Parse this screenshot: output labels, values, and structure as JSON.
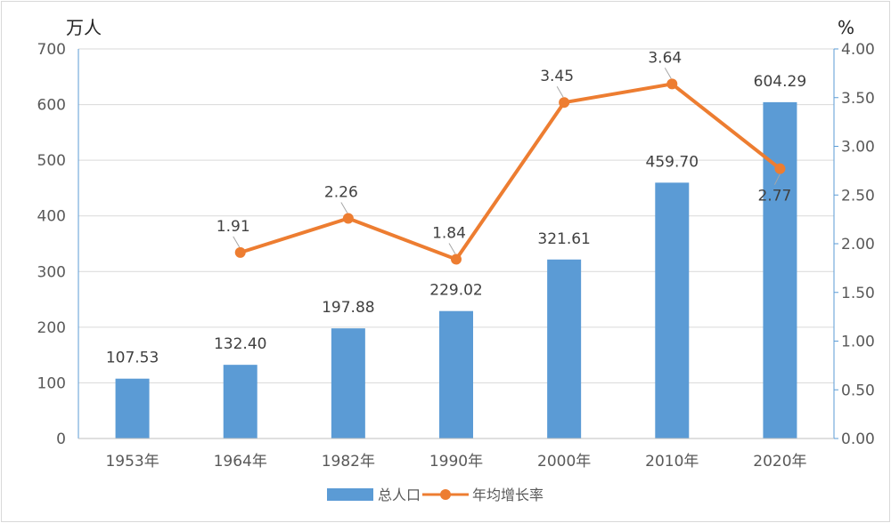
{
  "chart_data": {
    "type": "bar",
    "categories": [
      "1953年",
      "1964年",
      "1982年",
      "1990年",
      "2000年",
      "2010年",
      "2020年"
    ],
    "y_unit_left": "万人",
    "y_unit_right": "%",
    "ylim_left": [
      0,
      700
    ],
    "yticks_left": [
      "0",
      "100",
      "200",
      "300",
      "400",
      "500",
      "600",
      "700"
    ],
    "ylim_right": [
      0,
      4
    ],
    "yticks_right": [
      "0.00",
      "0.50",
      "1.00",
      "1.50",
      "2.00",
      "2.50",
      "3.00",
      "3.50",
      "4.00"
    ],
    "grid": true,
    "legend_position": "bottom",
    "series": [
      {
        "name": "总人口",
        "type": "bar",
        "axis": "left",
        "color": "#5b9bd5",
        "values": [
          107.53,
          132.4,
          197.88,
          229.02,
          321.61,
          459.7,
          604.29
        ],
        "labels": [
          "107.53",
          "132.40",
          "197.88",
          "229.02",
          "321.61",
          "459.70",
          "604.29"
        ]
      },
      {
        "name": "年均增长率",
        "type": "line",
        "axis": "right",
        "color": "#ed7d31",
        "values": [
          null,
          1.91,
          2.26,
          1.84,
          3.45,
          3.64,
          2.77
        ],
        "labels": [
          "",
          "1.91",
          "2.26",
          "1.84",
          "3.45",
          "3.64",
          "2.77"
        ]
      }
    ]
  }
}
